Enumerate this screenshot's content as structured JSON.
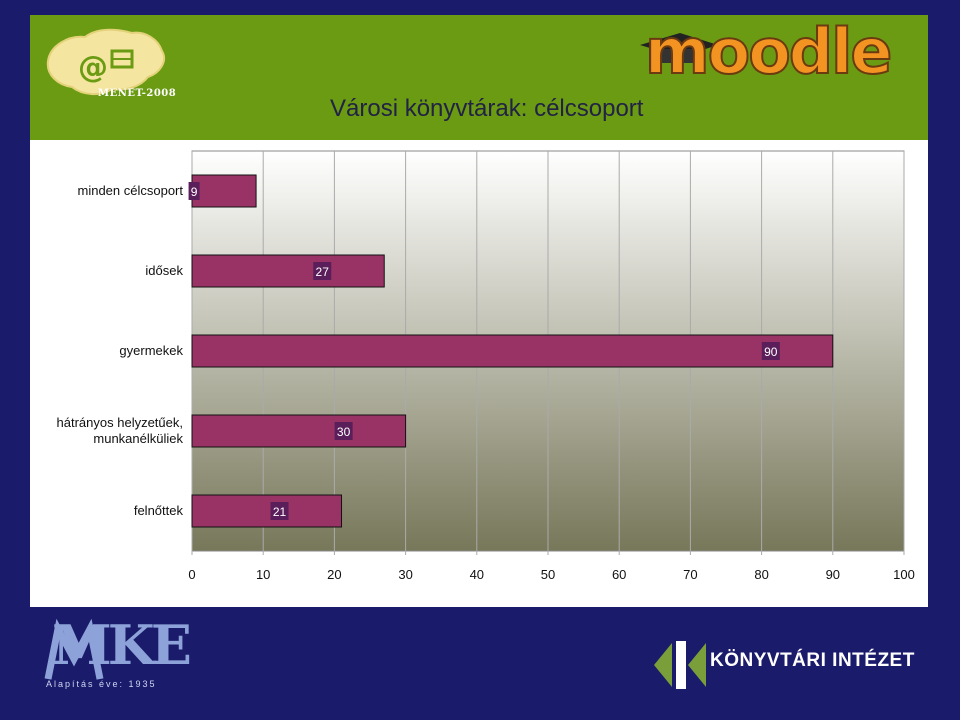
{
  "slide": {
    "title": "Városi könyvtárak: célcsoport",
    "colors": {
      "header_green": "#6a9b13",
      "navy": "#1b1b6b",
      "bar_fill": "#993366",
      "plot_gradient_top": "#ffffff",
      "plot_gradient_bottom": "#77775a"
    }
  },
  "logos": {
    "menet": {
      "label": "MENET-2008",
      "icon": "hungary-map-at-email-icon"
    },
    "moodle": {
      "label": "moodle",
      "icon": "graduation-cap-icon"
    },
    "mkt": {
      "label": "MKE",
      "sub": "Alapítás éve: 1935",
      "icon": "mke-logo-icon"
    },
    "konyvtari": {
      "label": "KÖNYVTÁRI INTÉZET",
      "icon": "ki-logo-icon"
    }
  },
  "chart_data": {
    "type": "bar",
    "orientation": "horizontal",
    "categories": [
      "minden célcsoport",
      "idősek",
      "gyermekek",
      "hátrányos helyzetűek, munkanélküliek",
      "felnőttek"
    ],
    "category_lines": [
      [
        "minden célcsoport"
      ],
      [
        "idősek"
      ],
      [
        "gyermekek"
      ],
      [
        "hátrányos helyzetűek,",
        "munkanélküliek"
      ],
      [
        "felnőttek"
      ]
    ],
    "values": [
      9,
      27,
      90,
      30,
      21
    ],
    "xlim": [
      0,
      100
    ],
    "xticks": [
      "0",
      "10",
      "20",
      "30",
      "40",
      "50",
      "60",
      "70",
      "80",
      "90",
      "100"
    ],
    "grid": true,
    "legend": "none"
  }
}
